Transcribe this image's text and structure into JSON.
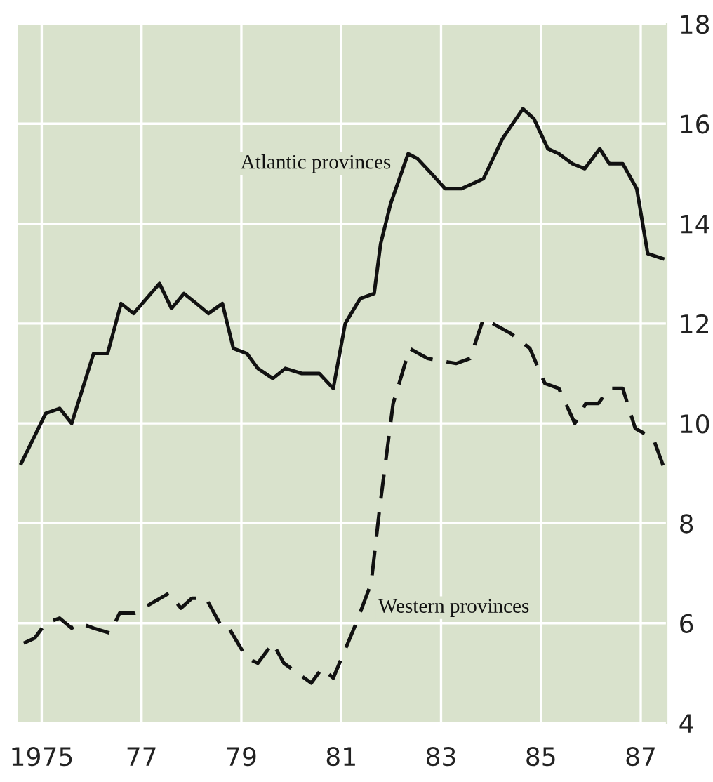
{
  "chart_data": {
    "type": "line",
    "xlim": [
      1974.53,
      1987.52
    ],
    "ylim": [
      4,
      18
    ],
    "xticks": [
      {
        "value": 1975,
        "label": "1975"
      },
      {
        "value": 1977,
        "label": "77"
      },
      {
        "value": 1979,
        "label": "79"
      },
      {
        "value": 1981,
        "label": "81"
      },
      {
        "value": 1983,
        "label": "83"
      },
      {
        "value": 1985,
        "label": "85"
      },
      {
        "value": 1987,
        "label": "87"
      }
    ],
    "yticks": [
      4,
      6,
      8,
      10,
      12,
      14,
      16,
      18
    ],
    "grid": true,
    "legend": false,
    "marker": "none",
    "series": [
      {
        "name": "Atlantic provinces",
        "color": "#111111",
        "line_style": "solid",
        "x": [
          1974.59,
          1975.08,
          1975.36,
          1975.6,
          1976.04,
          1976.32,
          1976.59,
          1976.84,
          1977.36,
          1977.6,
          1977.85,
          1978.1,
          1978.34,
          1978.62,
          1978.84,
          1979.11,
          1979.33,
          1979.63,
          1979.88,
          1980.21,
          1980.56,
          1980.84,
          1981.08,
          1981.38,
          1981.66,
          1981.79,
          1981.99,
          1982.34,
          1982.53,
          1982.81,
          1983.08,
          1983.41,
          1983.63,
          1983.85,
          1984.23,
          1984.64,
          1984.86,
          1985.14,
          1985.36,
          1985.63,
          1985.88,
          1986.18,
          1986.37,
          1986.64,
          1986.92,
          1987.14,
          1987.44
        ],
        "values": [
          9.2,
          10.2,
          10.3,
          10.0,
          11.4,
          11.4,
          12.4,
          12.2,
          12.8,
          12.3,
          12.6,
          12.4,
          12.2,
          12.4,
          11.5,
          11.4,
          11.1,
          10.9,
          11.1,
          11.0,
          11.0,
          10.7,
          12.0,
          12.5,
          12.6,
          13.6,
          14.4,
          15.4,
          15.3,
          15.0,
          14.7,
          14.7,
          14.8,
          14.9,
          15.7,
          16.3,
          16.1,
          15.5,
          15.4,
          15.2,
          15.1,
          15.5,
          15.2,
          15.2,
          14.7,
          13.4,
          13.3
        ]
      },
      {
        "name": "Western provinces",
        "color": "#111111",
        "line_style": "dashed",
        "x": [
          1974.64,
          1974.86,
          1975.08,
          1975.36,
          1975.6,
          1975.77,
          1976.04,
          1976.37,
          1976.56,
          1976.86,
          1977.55,
          1977.79,
          1978.01,
          1978.29,
          1978.62,
          1978.75,
          1979.11,
          1979.33,
          1979.63,
          1979.85,
          1980.4,
          1980.62,
          1980.84,
          1981.3,
          1981.6,
          1981.77,
          1982.04,
          1982.37,
          1982.73,
          1983.3,
          1983.58,
          1983.85,
          1984.4,
          1984.78,
          1985.08,
          1985.36,
          1985.68,
          1985.9,
          1986.15,
          1986.37,
          1986.64,
          1986.89,
          1987.25,
          1987.47
        ],
        "values": [
          5.6,
          5.7,
          6.0,
          6.1,
          5.9,
          6.0,
          5.9,
          5.8,
          6.2,
          6.2,
          6.6,
          6.3,
          6.5,
          6.5,
          5.9,
          5.9,
          5.3,
          5.2,
          5.6,
          5.2,
          4.8,
          5.1,
          4.9,
          6.0,
          6.8,
          8.3,
          10.4,
          11.5,
          11.3,
          11.2,
          11.3,
          12.1,
          11.8,
          11.5,
          10.8,
          10.7,
          10.0,
          10.4,
          10.4,
          10.7,
          10.7,
          9.9,
          9.7,
          9.1
        ]
      }
    ]
  }
}
